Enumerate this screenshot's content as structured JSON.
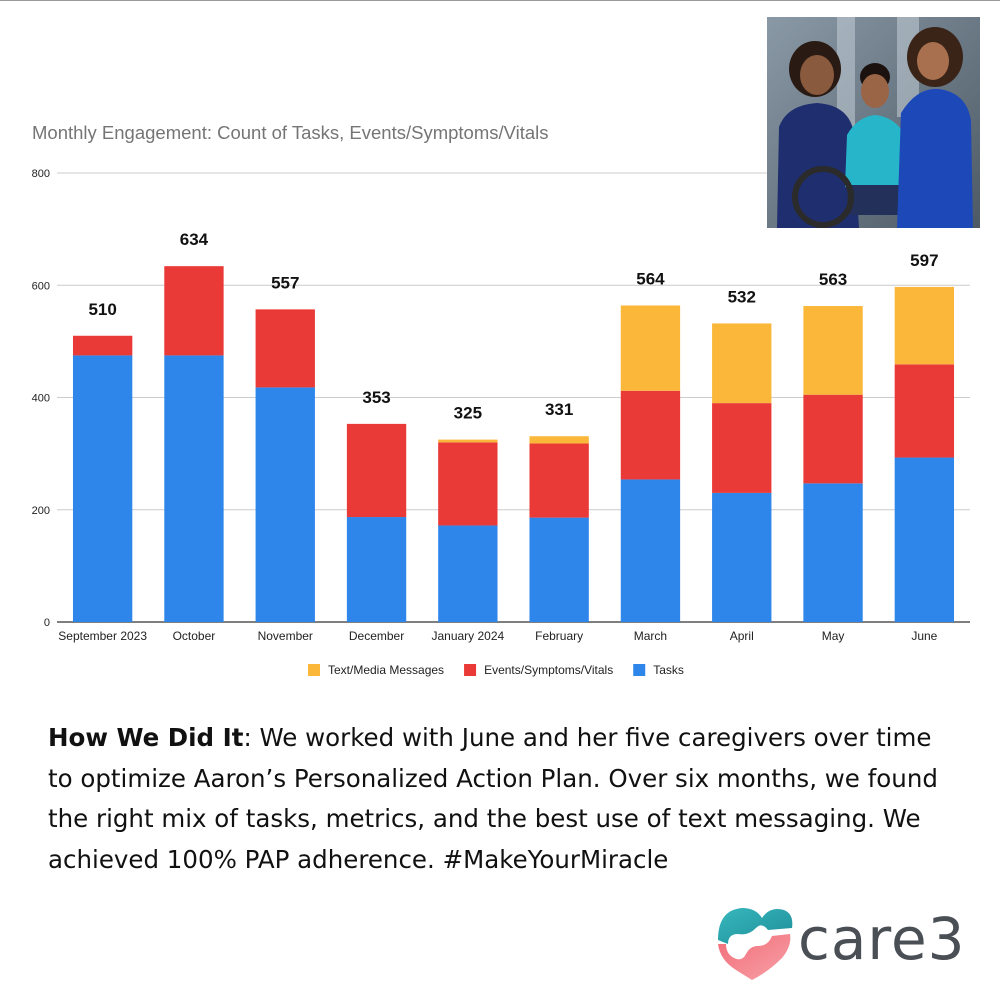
{
  "chart_data": {
    "type": "bar",
    "stacked": true,
    "title": "Monthly Engagement: Count of Tasks, Events/Symptoms/Vitals",
    "xlabel": "",
    "ylabel": "",
    "ylim": [
      0,
      800
    ],
    "yticks": [
      0,
      200,
      400,
      600,
      800
    ],
    "grid": true,
    "legend_position": "bottom",
    "categories": [
      "September 2023",
      "October",
      "November",
      "December",
      "January 2024",
      "February",
      "March",
      "April",
      "May",
      "June"
    ],
    "series": [
      {
        "name": "Tasks",
        "color": "#2e86ea",
        "values": [
          475,
          475,
          418,
          187,
          172,
          186,
          254,
          230,
          247,
          293
        ]
      },
      {
        "name": "Events/Symptoms/Vitals",
        "color": "#ea3a37",
        "values": [
          35,
          159,
          139,
          166,
          148,
          132,
          158,
          160,
          158,
          166
        ]
      },
      {
        "name": "Text/Media Messages",
        "color": "#fbb73a",
        "values": [
          0,
          0,
          0,
          0,
          5,
          13,
          152,
          142,
          158,
          138
        ]
      }
    ],
    "totals": [
      510,
      634,
      557,
      353,
      325,
      331,
      564,
      532,
      563,
      597
    ],
    "legend_order": [
      "Text/Media Messages",
      "Events/Symptoms/Vitals",
      "Tasks"
    ]
  },
  "body": {
    "lead": "How We Did It",
    "text": ": We worked with June and her five caregivers over time to optimize Aaron’s Personalized Action Plan. Over six months, we found the right mix of tasks, metrics, and the best use of text messaging. We achieved 100% PAP adherence. #MakeYourMiracle"
  },
  "logo": {
    "wordmark": "care3",
    "icon": "care3-heart-logo-icon"
  },
  "photo": {
    "icon": "family-photo"
  }
}
